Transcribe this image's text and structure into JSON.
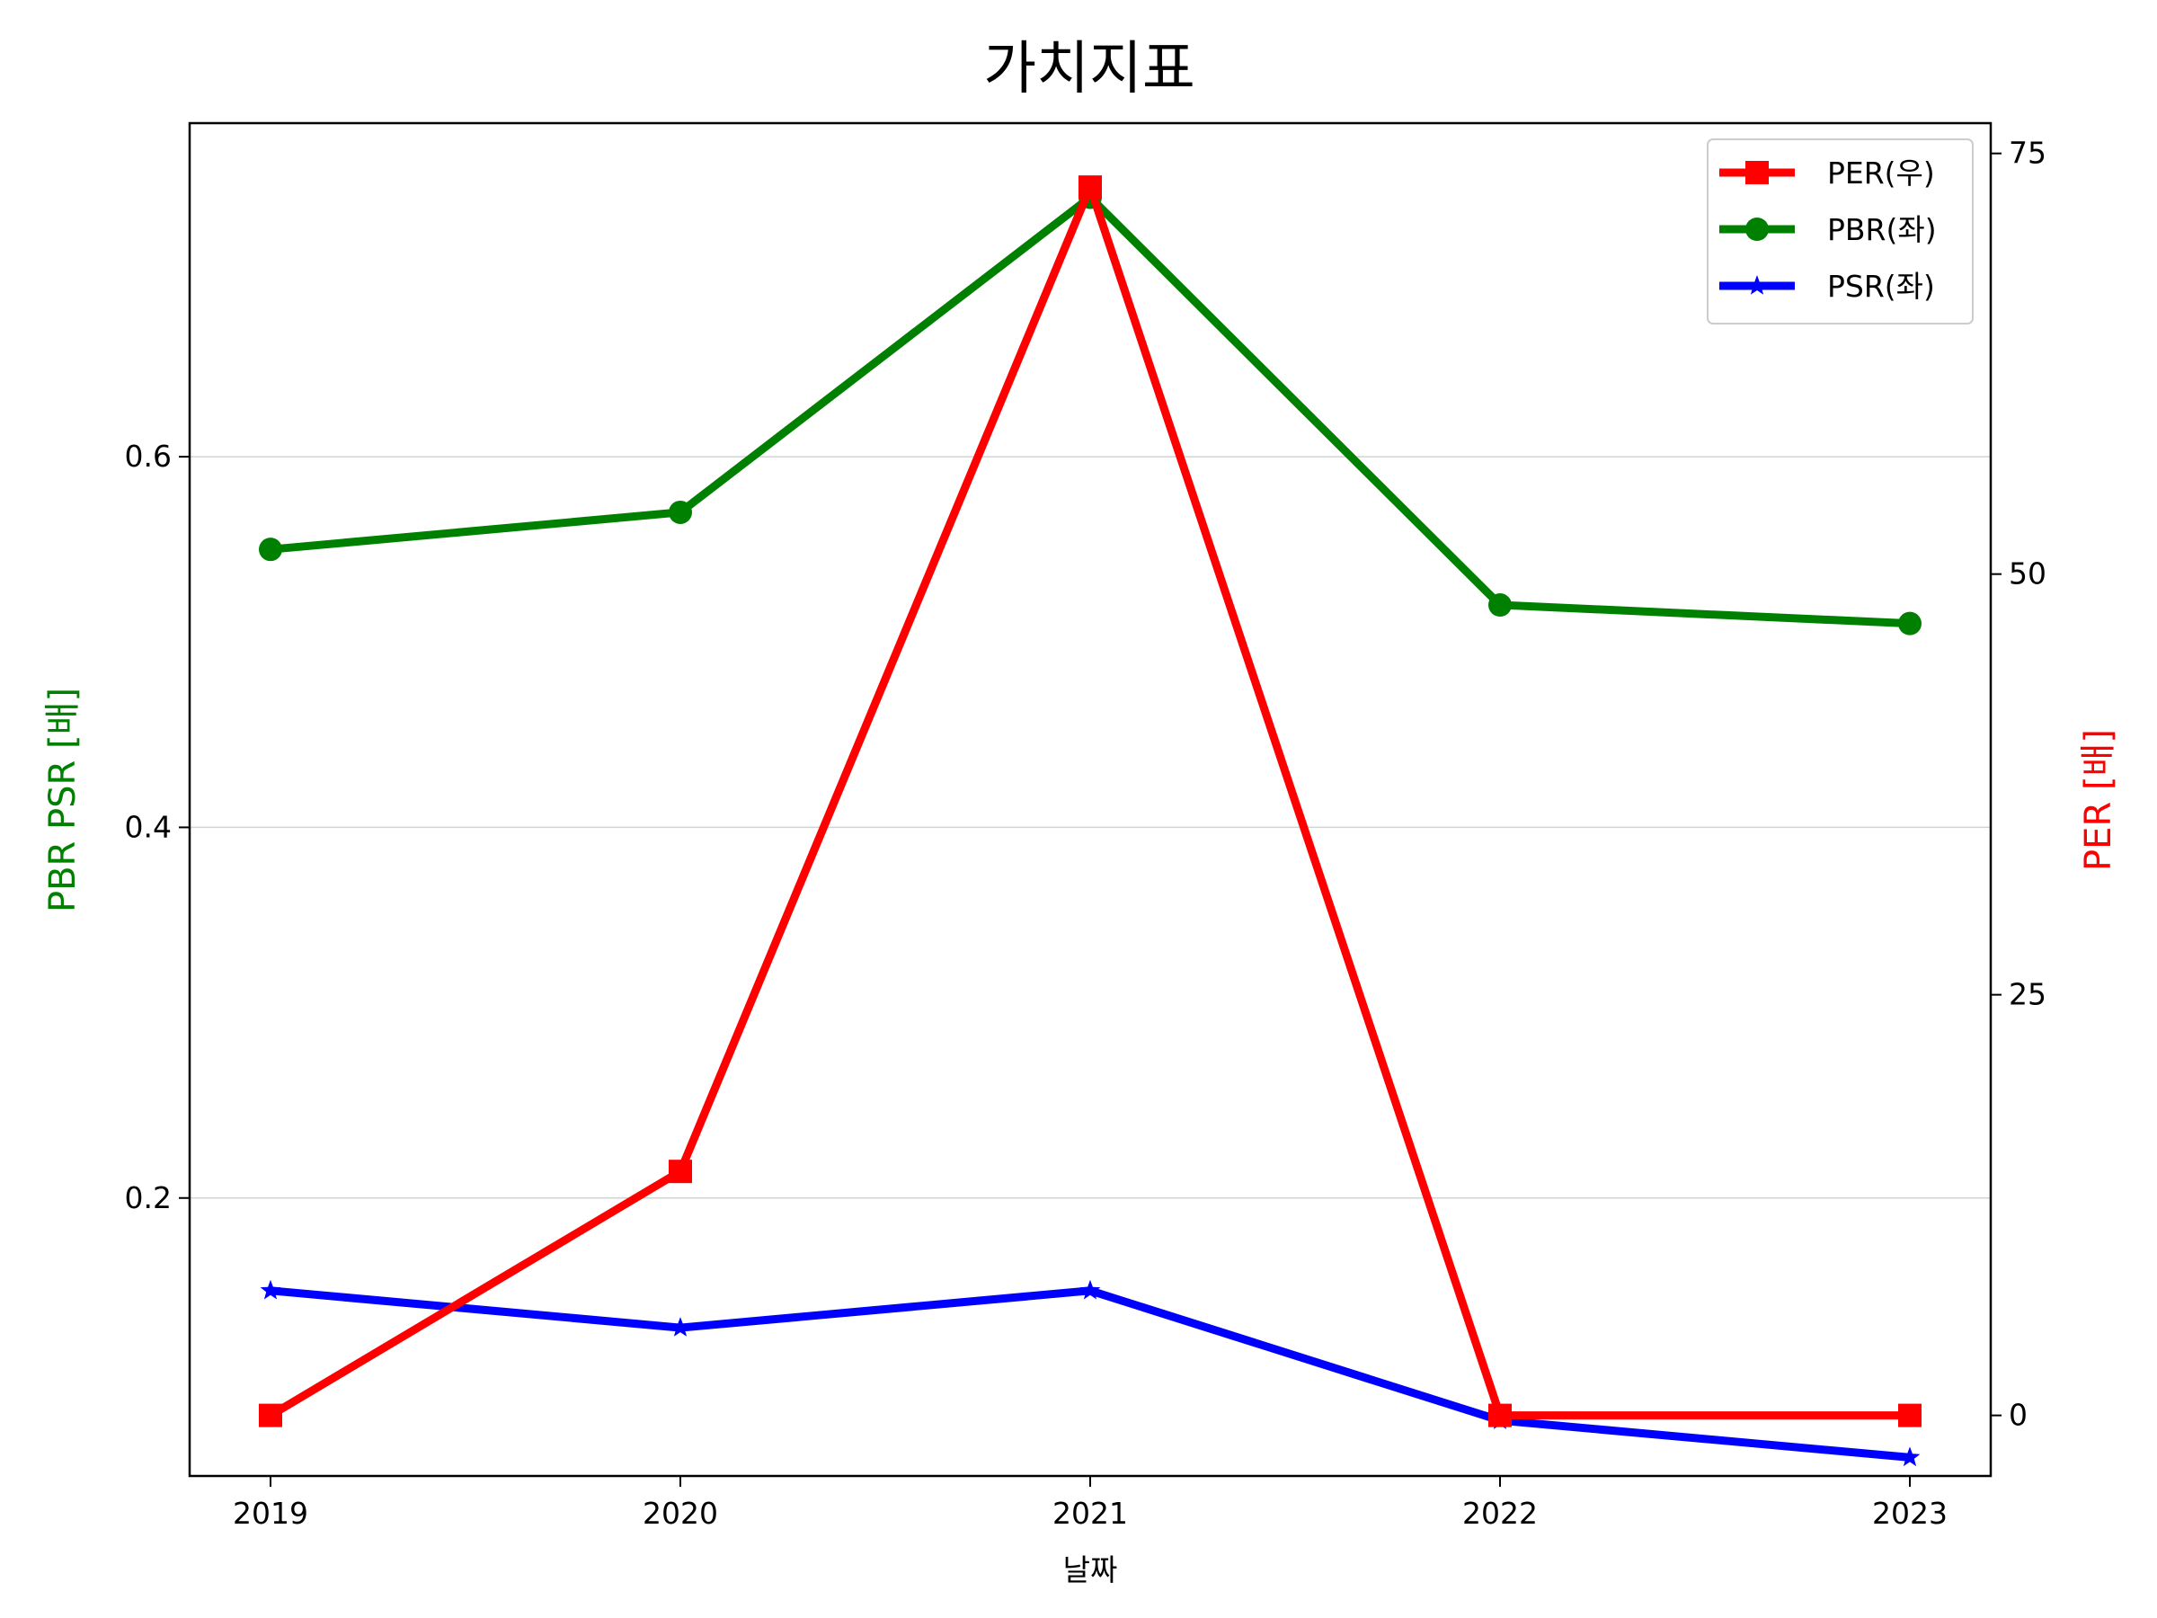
{
  "chart_data": {
    "type": "line",
    "title": "가치지표",
    "xlabel": "날짜",
    "ylabel_left": "PBR PSR [배]",
    "ylabel_right": "PER [배]",
    "categories": [
      "2019",
      "2020",
      "2021",
      "2022",
      "2023"
    ],
    "left_axis": {
      "range": [
        0.05,
        0.78
      ],
      "ticks": [
        0.2,
        0.4,
        0.6
      ],
      "tick_labels": [
        "0.2",
        "0.4",
        "0.6"
      ],
      "grid": true
    },
    "right_axis": {
      "range": [
        -3.6,
        76.8
      ],
      "ticks": [
        0,
        25,
        50,
        75
      ],
      "tick_labels": [
        "0",
        "25",
        "50",
        "75"
      ]
    },
    "series": [
      {
        "name": "PER(우)",
        "axis": "right",
        "color": "#ff0000",
        "marker": "square",
        "values": [
          0,
          14.5,
          73,
          0,
          0
        ]
      },
      {
        "name": "PBR(좌)",
        "axis": "left",
        "color": "#008000",
        "marker": "circle",
        "values": [
          0.55,
          0.57,
          0.74,
          0.52,
          0.51
        ]
      },
      {
        "name": "PSR(좌)",
        "axis": "left",
        "color": "#0000ff",
        "marker": "star",
        "values": [
          0.15,
          0.13,
          0.15,
          0.08,
          0.06
        ]
      }
    ],
    "legend": {
      "location": "upper right",
      "entries": [
        "PER(우)",
        "PBR(좌)",
        "PSR(좌)"
      ]
    },
    "axis_label_colors": {
      "left": "#008000",
      "right": "#ff0000"
    }
  }
}
